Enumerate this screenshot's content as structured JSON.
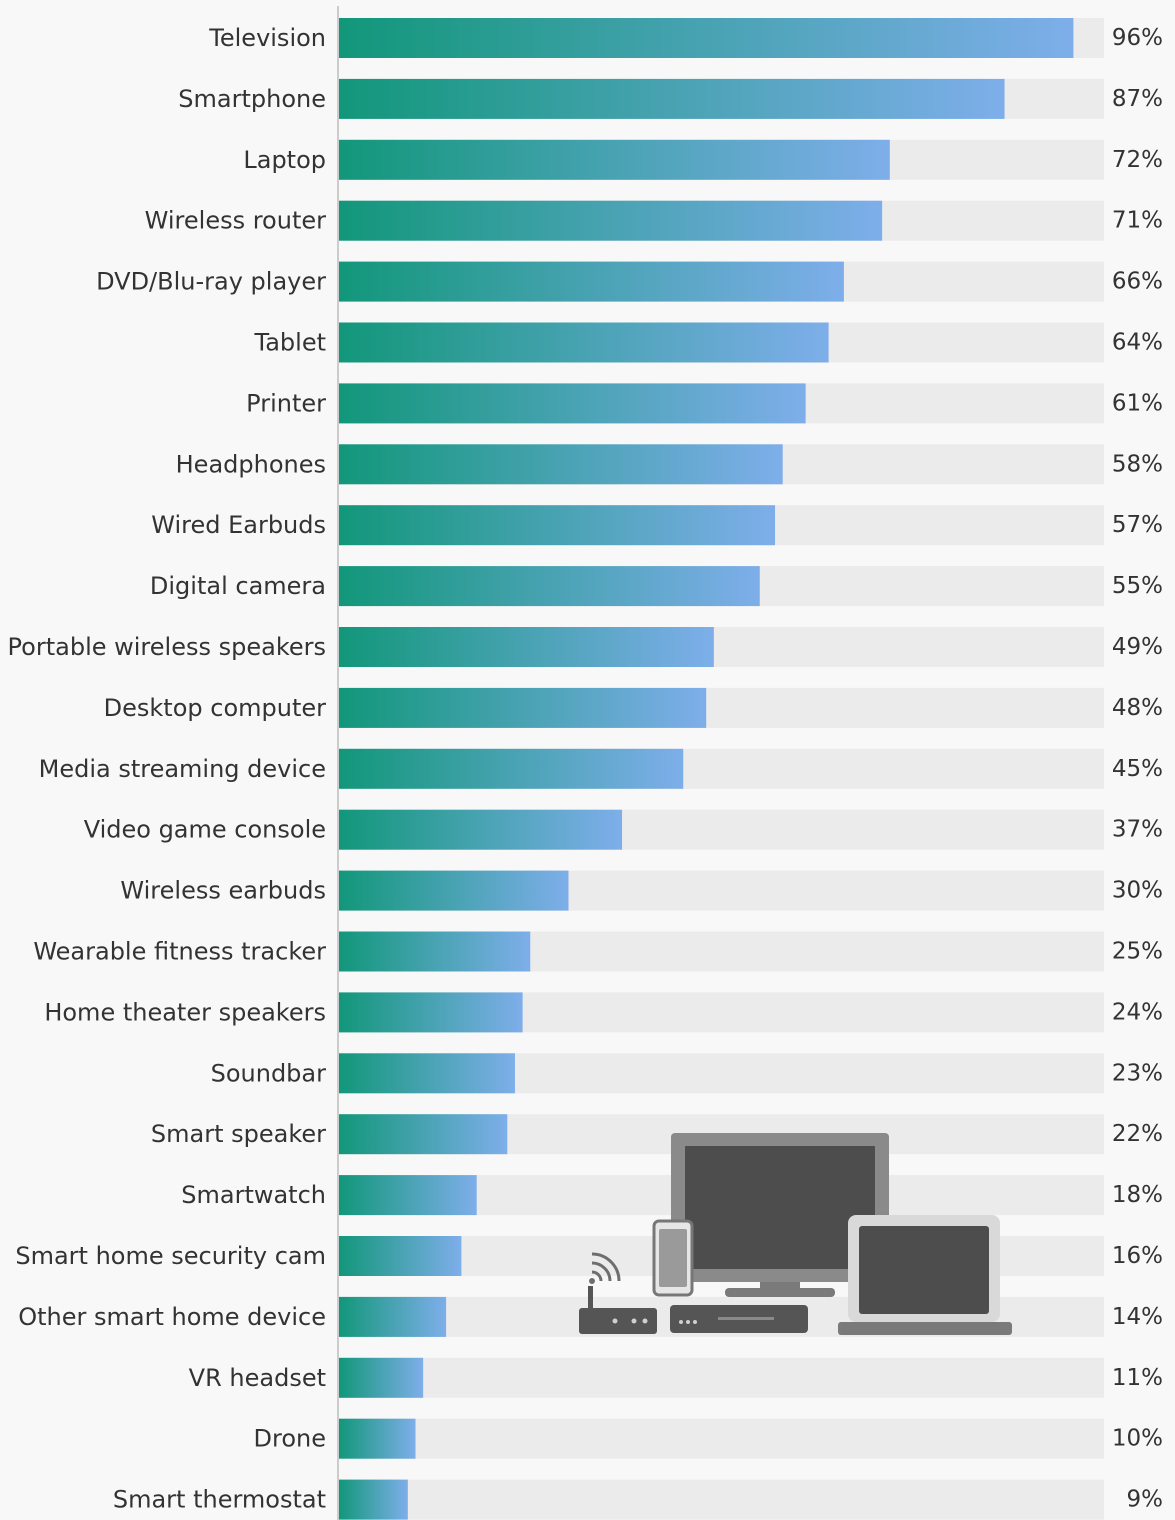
{
  "chart_data": {
    "type": "bar",
    "orientation": "horizontal",
    "title": "",
    "xlabel": "",
    "ylabel": "",
    "xlim": [
      0,
      100
    ],
    "value_suffix": "%",
    "grid": false,
    "categories": [
      "Television",
      "Smartphone",
      "Laptop",
      "Wireless router",
      "DVD/Blu-ray player",
      "Tablet",
      "Printer",
      "Headphones",
      "Wired Earbuds",
      "Digital camera",
      "Portable wireless speakers",
      "Desktop computer",
      "Media streaming device",
      "Video game console",
      "Wireless earbuds",
      "Wearable fitness tracker",
      "Home theater speakers",
      "Soundbar",
      "Smart speaker",
      "Smartwatch",
      "Smart home security cam",
      "Other smart home device",
      "VR headset",
      "Drone",
      "Smart thermostat"
    ],
    "values": [
      96,
      87,
      72,
      71,
      66,
      64,
      61,
      58,
      57,
      55,
      49,
      48,
      45,
      37,
      30,
      25,
      24,
      23,
      22,
      18,
      16,
      14,
      11,
      10,
      9
    ],
    "value_labels": [
      "96%",
      "87%",
      "72%",
      "71%",
      "66%",
      "64%",
      "61%",
      "58%",
      "57%",
      "55%",
      "49%",
      "48%",
      "45%",
      "37%",
      "30%",
      "25%",
      "24%",
      "23%",
      "22%",
      "18%",
      "16%",
      "14%",
      "11%",
      "10%",
      "9%"
    ],
    "colors": {
      "bar_gradient_start": "#12977a",
      "bar_gradient_end": "#7eaeea",
      "track": "#ebebeb",
      "background": "#f8f8f8",
      "axis": "#cccccc",
      "text": "#333333",
      "illustration": "#6e6e6e"
    },
    "illustration": "devices-illustration-icon"
  }
}
